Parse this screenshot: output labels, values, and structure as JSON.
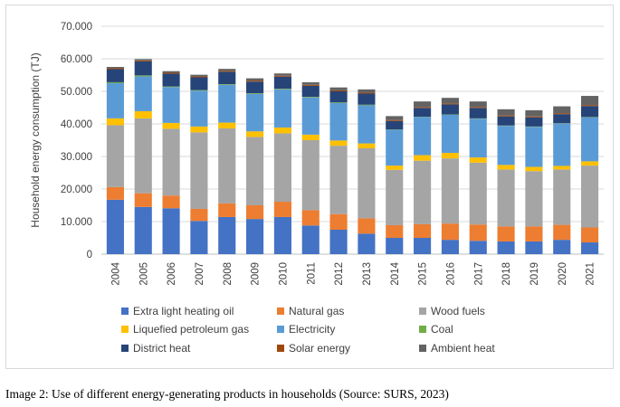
{
  "caption": "Image 2: Use of different energy-generating products in households (Source: SURS, 2023)",
  "chart_data": {
    "type": "bar",
    "stacked": true,
    "ylabel": "Household energy consumption (TJ)",
    "xlabel": "",
    "ylim": [
      0,
      70000
    ],
    "yticks": [
      "0",
      "10.000",
      "20.000",
      "30.000",
      "40.000",
      "50.000",
      "60.000",
      "70.000"
    ],
    "grid": true,
    "legend_position": "bottom",
    "categories": [
      "2004",
      "2005",
      "2006",
      "2007",
      "2008",
      "2009",
      "2010",
      "2011",
      "2012",
      "2013",
      "2014",
      "2015",
      "2016",
      "2017",
      "2018",
      "2019",
      "2020",
      "2021"
    ],
    "series": [
      {
        "name": "Extra light heating oil",
        "color": "#4472c4",
        "values": [
          16700,
          14500,
          14100,
          10200,
          11400,
          10800,
          11400,
          8800,
          7500,
          6300,
          5000,
          5000,
          4400,
          4100,
          3900,
          3900,
          4400,
          3600
        ]
      },
      {
        "name": "Natural gas",
        "color": "#ed7d31",
        "values": [
          3900,
          4200,
          3900,
          3700,
          4200,
          4200,
          4700,
          4700,
          4800,
          4700,
          3900,
          4200,
          5000,
          5000,
          4600,
          4600,
          4600,
          4600
        ]
      },
      {
        "name": "Wood fuels",
        "color": "#a5a5a5",
        "values": [
          19000,
          23000,
          20500,
          23500,
          23000,
          21000,
          21000,
          21500,
          21000,
          21500,
          17000,
          19500,
          20000,
          19000,
          17500,
          17000,
          17000,
          19000
        ]
      },
      {
        "name": "Liquefied petroleum gas",
        "color": "#ffc000",
        "values": [
          2100,
          2200,
          1800,
          1800,
          1800,
          1700,
          1800,
          1700,
          1600,
          1500,
          1300,
          1700,
          1700,
          1600,
          1400,
          1300,
          1100,
          1300
        ]
      },
      {
        "name": "Electricity",
        "color": "#5b9bd5",
        "values": [
          10800,
          10700,
          11000,
          11000,
          11600,
          11500,
          11700,
          11400,
          11500,
          11700,
          11000,
          11700,
          11700,
          11900,
          12000,
          12300,
          13000,
          13500
        ]
      },
      {
        "name": "Coal",
        "color": "#70ad47",
        "values": [
          300,
          300,
          200,
          200,
          200,
          200,
          200,
          200,
          200,
          200,
          100,
          100,
          100,
          100,
          100,
          100,
          100,
          100
        ]
      },
      {
        "name": "District heat",
        "color": "#264478",
        "values": [
          4000,
          4300,
          3900,
          3900,
          3800,
          3600,
          3700,
          3400,
          3400,
          3400,
          2600,
          2700,
          3100,
          3200,
          2800,
          2800,
          2800,
          3400
        ]
      },
      {
        "name": "Solar energy",
        "color": "#9e480e",
        "values": [
          300,
          300,
          300,
          300,
          300,
          300,
          300,
          300,
          300,
          300,
          300,
          300,
          300,
          300,
          300,
          300,
          300,
          300
        ]
      },
      {
        "name": "Ambient heat",
        "color": "#636363",
        "values": [
          400,
          400,
          500,
          500,
          600,
          700,
          700,
          800,
          900,
          1000,
          1200,
          1700,
          1700,
          1700,
          1900,
          1900,
          2100,
          2800
        ]
      }
    ]
  }
}
